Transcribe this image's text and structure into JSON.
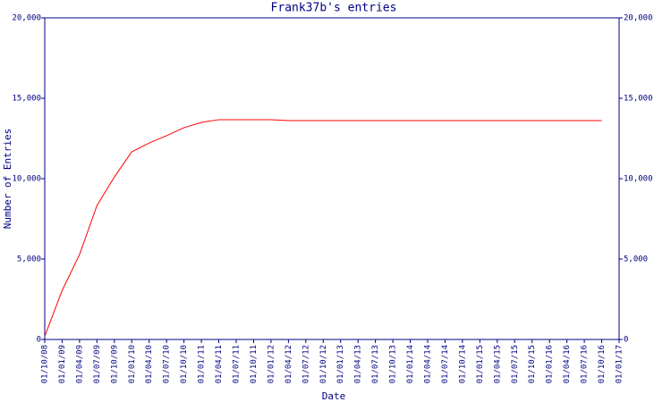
{
  "chart_data": {
    "type": "line",
    "title": "Frank37b's entries",
    "x_label": "Date",
    "y_label": "Number of Entries",
    "categories": [
      "01/10/08",
      "01/01/09",
      "01/04/09",
      "01/07/09",
      "01/10/09",
      "01/01/10",
      "01/04/10",
      "01/07/10",
      "01/10/10",
      "01/01/11",
      "01/04/11",
      "01/07/11",
      "01/10/11",
      "01/01/12",
      "01/04/12",
      "01/07/12",
      "01/10/12",
      "01/01/13",
      "01/04/13",
      "01/07/13",
      "01/10/13",
      "01/01/14",
      "01/04/14",
      "01/07/14",
      "01/10/14",
      "01/01/15",
      "01/04/15",
      "01/07/15",
      "01/10/15",
      "01/01/16",
      "01/04/16",
      "01/07/16",
      "01/10/16",
      "01/01/17"
    ],
    "series": [
      {
        "name": "Entries",
        "color": "#ff0000",
        "values": [
          200,
          3050,
          5280,
          8330,
          10100,
          11670,
          12220,
          12670,
          13170,
          13500,
          13670,
          13670,
          13670,
          13670,
          13610,
          13610,
          13610,
          13610,
          13610,
          13610,
          13610,
          13610,
          13610,
          13610,
          13610,
          13610,
          13610,
          13610,
          13610,
          13610,
          13610,
          13610,
          13610,
          null
        ]
      }
    ],
    "ylim": [
      0,
      20000
    ],
    "yticks": [
      0,
      {
        "value": 5000,
        "label": "5,000"
      },
      {
        "value": 10000,
        "label": "10,000"
      },
      {
        "value": 15000,
        "label": "15,000"
      },
      {
        "value": 20000,
        "label": "20,000"
      }
    ]
  }
}
